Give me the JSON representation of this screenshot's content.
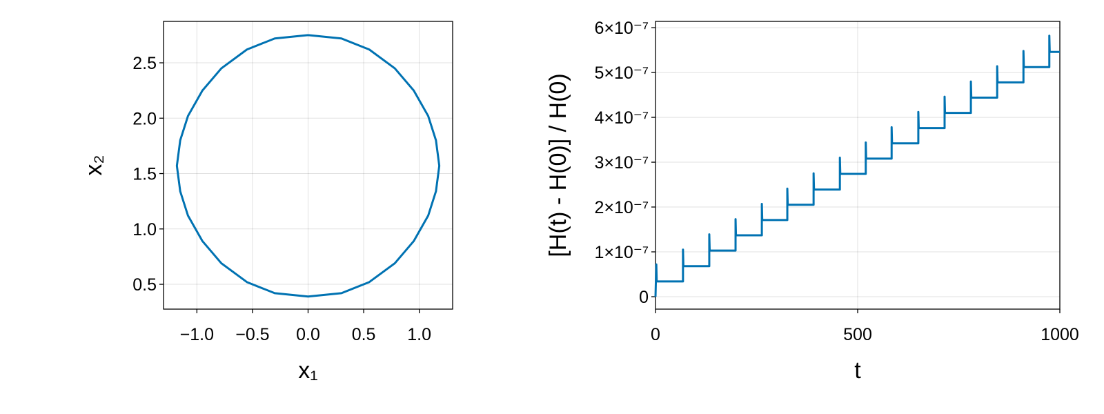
{
  "chart_data": [
    {
      "type": "line",
      "xlabel": "x₁",
      "ylabel": "x₂",
      "x": [
        0,
        0.3,
        0.55,
        0.78,
        0.95,
        1.08,
        1.15,
        1.18,
        1.15,
        1.08,
        0.95,
        0.78,
        0.55,
        0.3,
        0,
        -0.3,
        -0.55,
        -0.78,
        -0.95,
        -1.08,
        -1.15,
        -1.18,
        -1.15,
        -1.08,
        -0.95,
        -0.78,
        -0.55,
        -0.3,
        0
      ],
      "values": [
        2.75,
        2.72,
        2.62,
        2.45,
        2.25,
        2.02,
        1.8,
        1.57,
        1.34,
        1.12,
        0.89,
        0.69,
        0.52,
        0.42,
        0.39,
        0.42,
        0.52,
        0.69,
        0.89,
        1.12,
        1.34,
        1.57,
        1.8,
        2.02,
        2.25,
        2.45,
        2.62,
        2.72,
        2.75
      ],
      "color": "#0072b2",
      "xlim": [
        -1.3,
        1.3
      ],
      "xticks": [
        {
          "value": -1.0,
          "label": "−1.0"
        },
        {
          "value": -0.5,
          "label": "−0.5"
        },
        {
          "value": 0.0,
          "label": "0.0"
        },
        0.5,
        {
          "value": 1.0,
          "label": "1.0"
        }
      ],
      "ylim": [
        0.276,
        2.874
      ],
      "yticks": [
        0.5,
        {
          "value": 1.0,
          "label": "1.0"
        },
        1.5,
        {
          "value": 2.0,
          "label": "2.0"
        },
        2.5
      ],
      "grid": true
    },
    {
      "type": "line",
      "xlabel": "t",
      "ylabel": "[H(t) - H(0)] / H(0)",
      "x": [
        0,
        2,
        3,
        68,
        68,
        69,
        133,
        133,
        134,
        198,
        198,
        199,
        263,
        263,
        264,
        326,
        326,
        327,
        391,
        391,
        392,
        456,
        456,
        457,
        520,
        520,
        521,
        584,
        584,
        585,
        650,
        650,
        651,
        715,
        715,
        716,
        780,
        780,
        781,
        845,
        845,
        846,
        910,
        910,
        911,
        974,
        974,
        975,
        1000
      ],
      "values": [
        0,
        7.2e-08,
        3.4e-08,
        3.4e-08,
        1.05e-07,
        6.8e-08,
        6.8e-08,
        1.39e-07,
        1.03e-07,
        1.03e-07,
        1.73e-07,
        1.37e-07,
        1.37e-07,
        2.07e-07,
        1.71e-07,
        1.71e-07,
        2.41e-07,
        2.05e-07,
        2.05e-07,
        2.75e-07,
        2.39e-07,
        2.39e-07,
        3.1e-07,
        2.74e-07,
        2.74e-07,
        3.44e-07,
        3.08e-07,
        3.08e-07,
        3.78e-07,
        3.42e-07,
        3.42e-07,
        4.12e-07,
        3.76e-07,
        3.76e-07,
        4.46e-07,
        4.1e-07,
        4.1e-07,
        4.8e-07,
        4.44e-07,
        4.44e-07,
        5.14e-07,
        4.78e-07,
        4.78e-07,
        5.48e-07,
        5.12e-07,
        5.12e-07,
        5.82e-07,
        5.46e-07,
        5.46e-07
      ],
      "color": "#0072b2",
      "xlim": [
        0,
        1000
      ],
      "xticks": [
        0,
        500,
        1000
      ],
      "ylim": [
        -2.77e-08,
        6.14e-07
      ],
      "yticks": [
        0,
        {
          "value": 1e-07,
          "label": "1×10⁻⁷"
        },
        {
          "value": 2e-07,
          "label": "2×10⁻⁷"
        },
        {
          "value": 3e-07,
          "label": "3×10⁻⁷"
        },
        {
          "value": 4e-07,
          "label": "4×10⁻⁷"
        },
        {
          "value": 5e-07,
          "label": "5×10⁻⁷"
        },
        {
          "value": 6e-07,
          "label": "6×10⁻⁷"
        }
      ],
      "grid": true
    }
  ]
}
